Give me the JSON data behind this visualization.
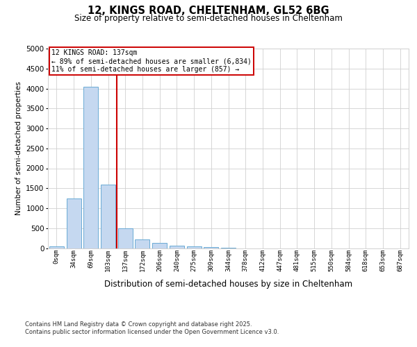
{
  "title1": "12, KINGS ROAD, CHELTENHAM, GL52 6BG",
  "title2": "Size of property relative to semi-detached houses in Cheltenham",
  "xlabel": "Distribution of semi-detached houses by size in Cheltenham",
  "ylabel": "Number of semi-detached properties",
  "categories": [
    "0sqm",
    "34sqm",
    "69sqm",
    "103sqm",
    "137sqm",
    "172sqm",
    "206sqm",
    "240sqm",
    "275sqm",
    "309sqm",
    "344sqm",
    "378sqm",
    "412sqm",
    "447sqm",
    "481sqm",
    "515sqm",
    "550sqm",
    "584sqm",
    "618sqm",
    "653sqm",
    "687sqm"
  ],
  "values": [
    50,
    1250,
    4050,
    1600,
    500,
    220,
    130,
    60,
    45,
    20,
    5,
    0,
    0,
    0,
    0,
    0,
    0,
    0,
    0,
    0,
    0
  ],
  "bar_color": "#c5d8f0",
  "bar_edge_color": "#6aaad4",
  "red_line_x": 3.5,
  "ylim": [
    0,
    5000
  ],
  "yticks": [
    0,
    500,
    1000,
    1500,
    2000,
    2500,
    3000,
    3500,
    4000,
    4500,
    5000
  ],
  "annotation_title": "12 KINGS ROAD: 137sqm",
  "annotation_line1": "← 89% of semi-detached houses are smaller (6,834)",
  "annotation_line2": "11% of semi-detached houses are larger (857) →",
  "footer1": "Contains HM Land Registry data © Crown copyright and database right 2025.",
  "footer2": "Contains public sector information licensed under the Open Government Licence v3.0.",
  "bg_color": "#ffffff",
  "grid_color": "#d0d0d0"
}
